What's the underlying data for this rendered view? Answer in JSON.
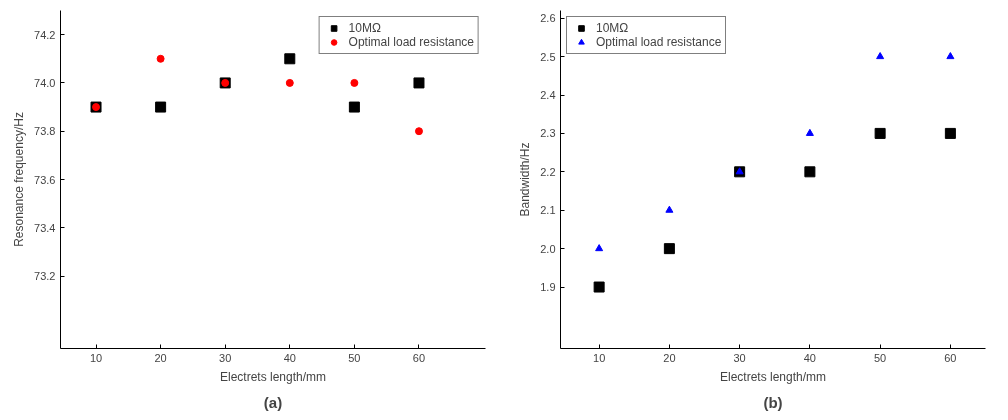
{
  "chart_data": [
    {
      "type": "scatter",
      "xlabel": "Electrets length/mm",
      "ylabel": "Resonance frequency/Hz",
      "annotations": [
        "(a)"
      ],
      "x": [
        10,
        20,
        30,
        40,
        50,
        60
      ],
      "xlim": [
        4.5,
        70.3
      ],
      "xticks": [
        10,
        20,
        30,
        40,
        50,
        60
      ],
      "ylim": [
        72.9,
        74.3
      ],
      "yticks": [
        73.2,
        73.4,
        73.6,
        73.8,
        {
          "value": 74,
          "label": "74.0"
        },
        74.2
      ],
      "grid": false,
      "legend": "top right",
      "series": [
        {
          "name": "10MΩ",
          "color": "#000000",
          "marker": "square",
          "values": [
            73.9,
            73.9,
            74.0,
            74.1,
            73.9,
            74.0
          ]
        },
        {
          "name": "Optimal load resistance",
          "color": "#ff0000",
          "marker": "circle",
          "values": [
            73.9,
            74.1,
            74.0,
            74.0,
            74.0,
            73.8
          ]
        }
      ]
    },
    {
      "type": "scatter",
      "xlabel": "Electrets length/mm",
      "ylabel": "Bandwidth/Hz",
      "annotations": [
        "(b)"
      ],
      "x": [
        10,
        20,
        30,
        40,
        50,
        60
      ],
      "xlim": [
        4.5,
        65
      ],
      "xticks": [
        10,
        20,
        30,
        40,
        50,
        60
      ],
      "ylim": [
        1.74,
        2.62
      ],
      "yticks": [
        1.9,
        {
          "value": 2,
          "label": "2.0"
        },
        2.1,
        2.2,
        2.3,
        2.4,
        2.5,
        2.6
      ],
      "grid": false,
      "legend": "top left",
      "series": [
        {
          "name": "10MΩ",
          "color": "#000000",
          "marker": "square",
          "values": [
            1.9,
            2.0,
            2.2,
            2.2,
            2.3,
            2.3
          ]
        },
        {
          "name": "Optimal load resistance",
          "color": "#0000ff",
          "marker": "triangle",
          "values": [
            2.0,
            2.1,
            2.2,
            2.3,
            2.5,
            2.5
          ]
        }
      ]
    }
  ]
}
